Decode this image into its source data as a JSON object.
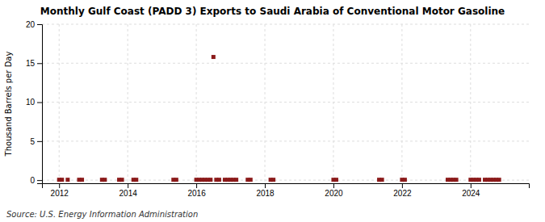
{
  "chart_data": {
    "type": "scatter",
    "title": "Monthly Gulf Coast (PADD 3) Exports to Saudi Arabia of Conventional Motor Gasoline",
    "ylabel": "Thousand Barrels per Day",
    "annotation": "Source: U.S. Energy Information Administration",
    "color": "#8b1a1a",
    "marker": "square",
    "grid": true,
    "xlim": [
      2011.5,
      2025.7
    ],
    "ylim": [
      -0.4,
      20
    ],
    "xticks": [
      2012,
      2014,
      2016,
      2018,
      2020,
      2022,
      2024
    ],
    "yticks": [
      0,
      5,
      10,
      15,
      20
    ],
    "x": [
      2012.0,
      2012.083,
      2012.25,
      2012.583,
      2012.667,
      2013.25,
      2013.333,
      2013.75,
      2013.833,
      2014.167,
      2014.25,
      2015.333,
      2015.417,
      2016.0,
      2016.083,
      2016.167,
      2016.25,
      2016.333,
      2016.417,
      2016.5,
      2016.583,
      2016.667,
      2016.833,
      2016.917,
      2017.0,
      2017.083,
      2017.167,
      2017.5,
      2017.583,
      2018.167,
      2018.25,
      2020.0,
      2020.083,
      2021.333,
      2021.417,
      2022.0,
      2022.083,
      2023.333,
      2023.417,
      2023.5,
      2023.583,
      2024.0,
      2024.083,
      2024.167,
      2024.25,
      2024.417,
      2024.5,
      2024.583,
      2024.667,
      2024.75,
      2024.833
    ],
    "values": [
      0.05,
      0.05,
      0.05,
      0.05,
      0.05,
      0.05,
      0.05,
      0.05,
      0.05,
      0.05,
      0.05,
      0.05,
      0.05,
      0.05,
      0.05,
      0.05,
      0.05,
      0.05,
      0.05,
      15.8,
      0.05,
      0.05,
      0.05,
      0.05,
      0.05,
      0.05,
      0.05,
      0.05,
      0.05,
      0.05,
      0.05,
      0.05,
      0.05,
      0.05,
      0.05,
      0.05,
      0.05,
      0.05,
      0.05,
      0.05,
      0.05,
      0.05,
      0.05,
      0.05,
      0.05,
      0.05,
      0.05,
      0.05,
      0.05,
      0.05,
      0.05
    ]
  }
}
